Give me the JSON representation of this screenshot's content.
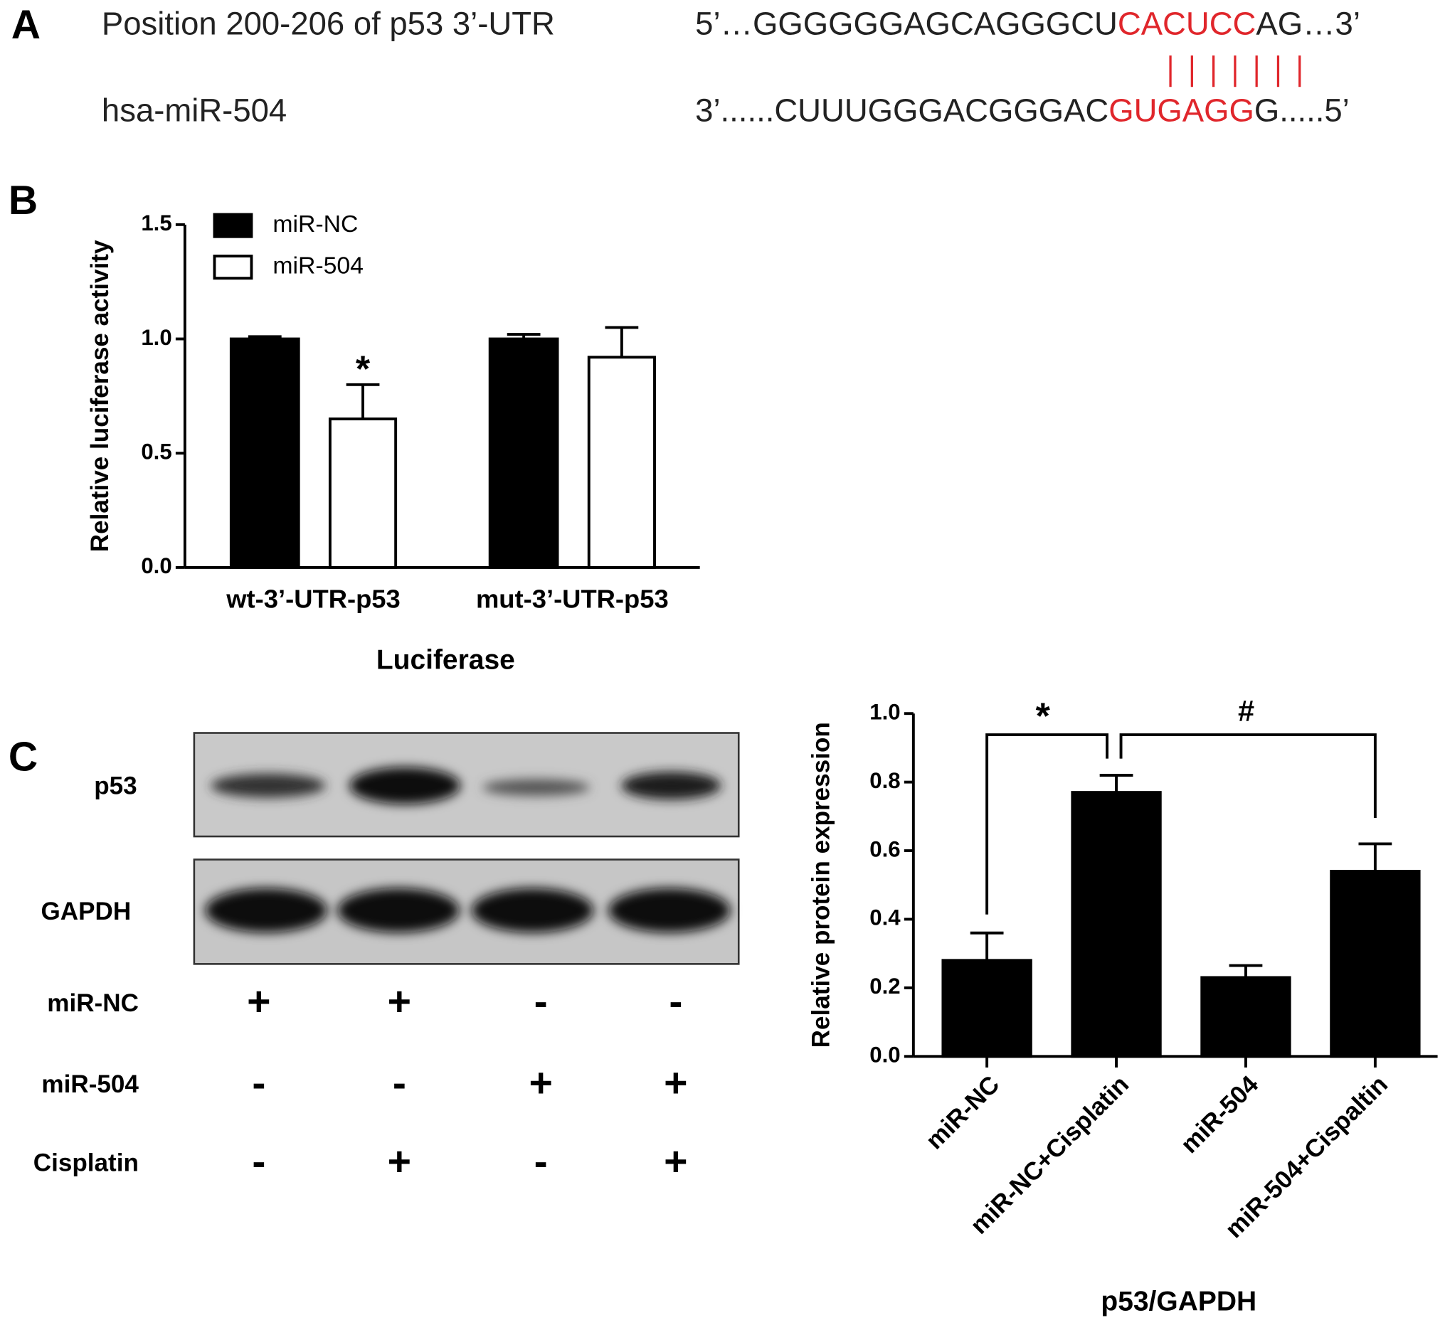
{
  "panel_labels": [
    "A",
    "B",
    "C"
  ],
  "sequence_alignment": {
    "utr_label": "Position 200-206 of p53 3’-UTR",
    "utr_sequence": [
      "5’…GGGGGGAGCAGGGCU",
      "CACUCC",
      "AG…3’"
    ],
    "mirna_label": "hsa-miR-504",
    "mirna_sequence": [
      "3’......CUUUGGGACGGGAC",
      "GUGAGG",
      "G.....5’"
    ]
  },
  "western_blot": {
    "bands": [
      "p53",
      "GAPDH"
    ],
    "conditions": [
      {
        "label": "miR-NC",
        "signs": [
          "+",
          "+",
          "-",
          "-"
        ]
      },
      {
        "label": "miR-504",
        "signs": [
          "-",
          "-",
          "+",
          "+"
        ]
      },
      {
        "label": "Cisplatin",
        "signs": [
          "-",
          "+",
          "-",
          "+"
        ]
      }
    ]
  },
  "chart_data": [
    {
      "type": "bar",
      "y_label": "Relative luciferase activity",
      "x_label": "Luciferase",
      "categories": [
        "wt-3’-UTR-p53",
        "mut-3’-UTR-p53"
      ],
      "series": [
        {
          "name": "miR-NC",
          "color": "#000000",
          "values": [
            1.0,
            1.0
          ],
          "errors": [
            0.01,
            0.02
          ]
        },
        {
          "name": "miR-504",
          "color": "#ffffff",
          "values": [
            0.65,
            0.92
          ],
          "errors": [
            0.15,
            0.13
          ]
        }
      ],
      "ylim": [
        0,
        1.5
      ],
      "yticks": [
        {
          "value": 0,
          "label": "0.0"
        },
        0.5,
        {
          "value": 1,
          "label": "1.0"
        },
        1.5
      ],
      "annotations": [
        "*"
      ],
      "legend": "top-left"
    },
    {
      "type": "bar",
      "y_label": "Relative protein expression",
      "x_label": "p53/GAPDH",
      "categories": [
        "miR-NC",
        "miR-NC+Cisplatin",
        "miR-504",
        "miR-504+Cispaltin"
      ],
      "values": [
        0.28,
        0.77,
        0.23,
        0.54
      ],
      "errors": [
        0.08,
        0.05,
        0.035,
        0.08
      ],
      "color": "#000000",
      "ylim": [
        0,
        1.0
      ],
      "yticks": [
        {
          "value": 0,
          "label": "0.0"
        },
        0.2,
        0.4,
        0.6,
        0.8,
        {
          "value": 1,
          "label": "1.0"
        }
      ],
      "annotations": [
        "*",
        "#"
      ]
    }
  ]
}
